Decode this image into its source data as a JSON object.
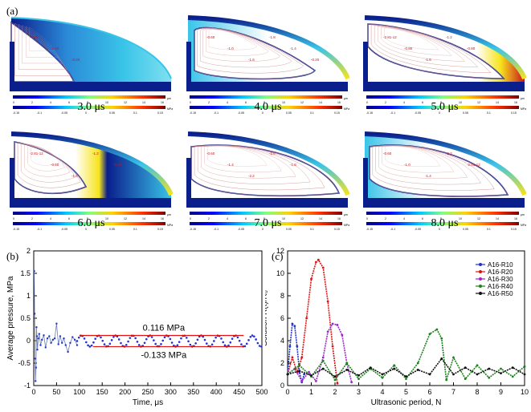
{
  "figure": {
    "panel_a_label": "(a)",
    "panel_b_label": "(b)",
    "panel_c_label": "(c)",
    "colorbar_units": [
      "μm",
      "MPa"
    ],
    "colorbar_top_ticks": [
      "0",
      "2",
      "4",
      "6",
      "8",
      "10",
      "12",
      "14",
      "16"
    ],
    "colorbar_bottom_ticks": [
      "-0.15",
      "-0.1",
      "-0.05",
      "0",
      "0.05",
      "0.1",
      "0.15"
    ],
    "snapshots": [
      {
        "time": "3.0 μs",
        "contours": [
          "-0.60",
          "-0.40",
          "-0.20"
        ]
      },
      {
        "time": "4.0 μs",
        "contours": [
          "-0.60",
          "-1.0",
          "-1.6",
          "-1.8",
          "-1.4",
          "-0.20"
        ]
      },
      {
        "time": "5.0 μs",
        "contours": [
          "-2.81-12",
          "-0.80",
          "-1.6",
          "-1.2",
          "-0.80"
        ]
      },
      {
        "time": "6.0 μs",
        "contours": [
          "-2.81-12",
          "-0.60",
          "-1.6",
          "-1.2",
          "-0.40"
        ]
      },
      {
        "time": "7.0 μs",
        "contours": [
          "-0.60",
          "-1.4",
          "-2.2",
          "-2.6",
          "-1.8"
        ]
      },
      {
        "time": "8.0 μs",
        "contours": [
          "-0.60",
          "-1.0",
          "-1.4",
          "-2.2",
          "-2.81-12"
        ]
      }
    ],
    "colors": {
      "blue": "#0a1e8c",
      "red": "#c8141e",
      "cyan": "#39c4e8",
      "yellow": "#f7e31c"
    }
  },
  "chart_data": [
    {
      "type": "line",
      "panel": "(b)",
      "xlabel": "Time, μs",
      "ylabel": "Average pressure, MPa",
      "xlim": [
        0,
        500
      ],
      "ylim": [
        -1,
        2
      ],
      "xticks": [
        "0",
        "50",
        "100",
        "150",
        "200",
        "250",
        "300",
        "350",
        "400",
        "450",
        "500"
      ],
      "yticks": [
        "-1",
        "-0.5",
        "0",
        "0.5",
        "1",
        "1.5",
        "2"
      ],
      "amplitude_top": 0.116,
      "amplitude_bottom": -0.133,
      "period": 37.5,
      "annotations": [
        "0.116 MPa",
        "-0.133 MPa"
      ],
      "annotation_lines": [
        {
          "y": 0.116,
          "x": [
            100,
            460
          ]
        },
        {
          "y": -0.133,
          "x": [
            130,
            460
          ]
        }
      ],
      "transient": {
        "x": [
          1,
          2,
          3,
          4,
          5,
          6,
          7,
          8,
          10,
          12,
          15,
          18,
          22,
          26,
          30,
          34,
          38,
          42,
          46,
          50,
          54,
          58,
          62,
          66,
          70,
          75,
          80,
          85,
          90,
          95
        ],
        "y": [
          1.55,
          0.6,
          -0.4,
          -0.9,
          -0.6,
          0.3,
          0.1,
          -0.2,
          0.05,
          0.15,
          -0.1,
          0.02,
          0.12,
          -0.15,
          0.05,
          0.1,
          -0.05,
          0.02,
          0.05,
          0.38,
          -0.08,
          0.1,
          -0.05,
          0.05,
          -0.1,
          -0.25,
          -0.05,
          0.08,
          0.02,
          -0.1
        ]
      }
    },
    {
      "type": "line",
      "panel": "(c)",
      "xlabel": "Ultrasonic period, N",
      "ylabel": "Solution R(t)/R₀",
      "xlim": [
        0,
        10
      ],
      "ylim": [
        0,
        12
      ],
      "xticks": [
        "0",
        "1",
        "2",
        "3",
        "4",
        "5",
        "6",
        "7",
        "8",
        "9",
        "10"
      ],
      "yticks": [
        "0",
        "2",
        "4",
        "6",
        "8",
        "10",
        "12"
      ],
      "series": [
        {
          "name": "A16-R10",
          "color": "#1f32d2",
          "x": [
            0,
            0.1,
            0.2,
            0.3,
            0.4,
            0.5,
            0.6,
            0.7
          ],
          "y": [
            1,
            3.5,
            5.5,
            5.3,
            3.5,
            1.2,
            0.3,
            1
          ]
        },
        {
          "name": "A16-R20",
          "color": "#dc1414",
          "x": [
            0,
            0.2,
            0.4,
            0.6,
            0.8,
            1.0,
            1.2,
            1.3,
            1.5,
            1.7,
            1.9,
            2.1
          ],
          "y": [
            1,
            2.5,
            1.2,
            2.5,
            6,
            9.5,
            11.0,
            11.2,
            10.5,
            7.5,
            3.5,
            0.2
          ]
        },
        {
          "name": "A16-R30",
          "color": "#9b28c8",
          "x": [
            0,
            0.3,
            0.6,
            0.9,
            1.2,
            1.5,
            1.7,
            1.9,
            2.1,
            2.3,
            2.5,
            2.7
          ],
          "y": [
            1,
            1.5,
            0.4,
            1.2,
            0.4,
            2.5,
            4.8,
            5.5,
            5.4,
            4.5,
            2,
            0.3
          ]
        },
        {
          "name": "A16-R40",
          "color": "#1e821e",
          "x": [
            0,
            0.5,
            1,
            1.5,
            2,
            2.5,
            3,
            3.5,
            4,
            4.5,
            5,
            5.5,
            6,
            6.3,
            6.5,
            6.7,
            7,
            7.5,
            8,
            8.5,
            9,
            9.5,
            10
          ],
          "y": [
            1,
            1.8,
            0.8,
            2.2,
            0.5,
            2.0,
            0.6,
            1.5,
            0.7,
            1.8,
            0.6,
            2.0,
            4.6,
            5.0,
            4.2,
            0.5,
            2.5,
            0.6,
            1.8,
            0.7,
            1.5,
            0.8,
            1.7
          ]
        },
        {
          "name": "A16-R50",
          "color": "#111111",
          "x": [
            0,
            0.5,
            1,
            1.5,
            2,
            2.5,
            3,
            3.5,
            4,
            4.5,
            5,
            5.5,
            6,
            6.5,
            7,
            7.5,
            8,
            8.5,
            9,
            9.5,
            10
          ],
          "y": [
            1,
            1.3,
            0.9,
            1.5,
            0.8,
            1.4,
            0.9,
            1.6,
            1.0,
            1.5,
            0.8,
            1.4,
            1.0,
            2.4,
            1.0,
            1.6,
            1.0,
            1.5,
            1.1,
            1.6,
            1.0
          ]
        }
      ]
    }
  ]
}
